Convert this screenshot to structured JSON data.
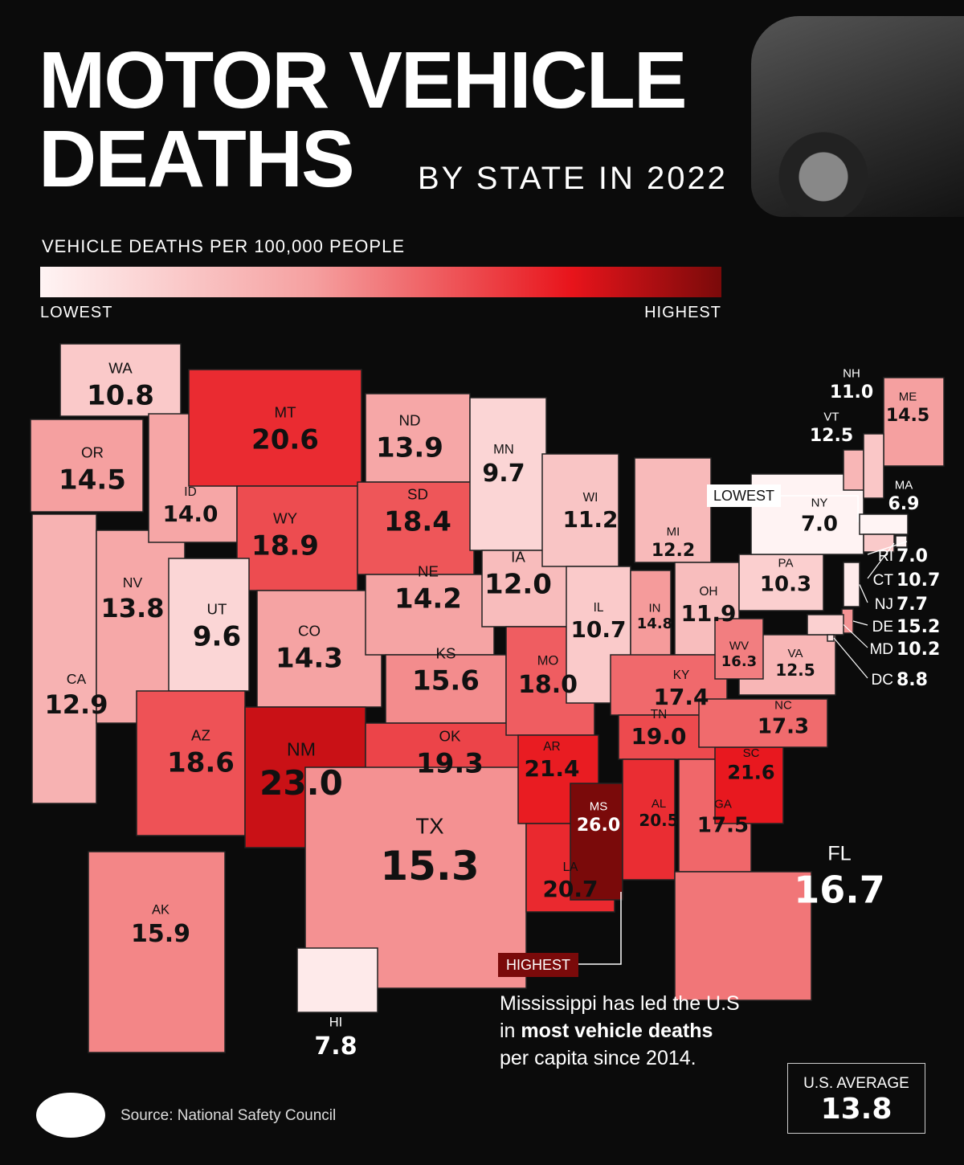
{
  "header": {
    "title_line1": "MOTOR VEHICLE",
    "title_line2": "DEATHS",
    "subtitle": "BY STATE IN 2022"
  },
  "legend": {
    "title": "VEHICLE DEATHS PER 100,000 PEOPLE",
    "low": "LOWEST",
    "high": "HIGHEST"
  },
  "states": {
    "codes": [
      "WA",
      "OR",
      "CA",
      "NV",
      "ID",
      "MT",
      "WY",
      "UT",
      "AZ",
      "CO",
      "NM",
      "ND",
      "SD",
      "NE",
      "KS",
      "OK",
      "TX",
      "MN",
      "IA",
      "MO",
      "AR",
      "LA",
      "WI",
      "IL",
      "MI",
      "IN",
      "OH",
      "KY",
      "TN",
      "MS",
      "AL",
      "GA",
      "FL",
      "SC",
      "NC",
      "VA",
      "WV",
      "PA",
      "NY",
      "ME",
      "VT",
      "NH",
      "MA",
      "RI",
      "CT",
      "NJ",
      "DE",
      "MD",
      "DC",
      "AK",
      "HI"
    ],
    "values": [
      10.8,
      14.5,
      12.9,
      13.8,
      14.0,
      20.6,
      18.9,
      9.6,
      18.6,
      14.3,
      23.0,
      13.9,
      18.4,
      14.2,
      15.6,
      19.3,
      15.3,
      9.7,
      12.0,
      18.0,
      21.4,
      20.7,
      11.2,
      10.7,
      12.2,
      14.8,
      11.9,
      17.4,
      19.0,
      26.0,
      20.5,
      17.5,
      16.7,
      21.6,
      17.3,
      12.5,
      16.3,
      10.3,
      7.0,
      14.5,
      12.5,
      11.0,
      6.9,
      7.0,
      10.7,
      7.7,
      15.2,
      10.2,
      8.8,
      15.9,
      7.8
    ],
    "value_labels": [
      "10.8",
      "14.5",
      "12.9",
      "13.8",
      "14.0",
      "20.6",
      "18.9",
      "9.6",
      "18.6",
      "14.3",
      "23.0",
      "13.9",
      "18.4",
      "14.2",
      "15.6",
      "19.3",
      "15.3",
      "9.7",
      "12.0",
      "18.0",
      "21.4",
      "20.7",
      "11.2",
      "10.7",
      "12.2",
      "14.8",
      "11.9",
      "17.4",
      "19.0",
      "26.0",
      "20.5",
      "17.5",
      "16.7",
      "21.6",
      "17.3",
      "12.5",
      "16.3",
      "10.3",
      "7.0",
      "14.5",
      "12.5",
      "11.0",
      "6.9",
      "7.0",
      "10.7",
      "7.7",
      "15.2",
      "10.2",
      "8.8",
      "15.9",
      "7.8"
    ]
  },
  "callouts": {
    "lowest": "LOWEST",
    "highest": "HIGHEST"
  },
  "note": {
    "line1": "Mississippi has led the U.S",
    "line2_start": "in",
    "line2_bold": "most vehicle deaths",
    "line3": "per capita since 2014."
  },
  "average": {
    "label": "U.S. AVERAGE",
    "value": 13.8
  },
  "source": "Source: National Safety Council"
}
